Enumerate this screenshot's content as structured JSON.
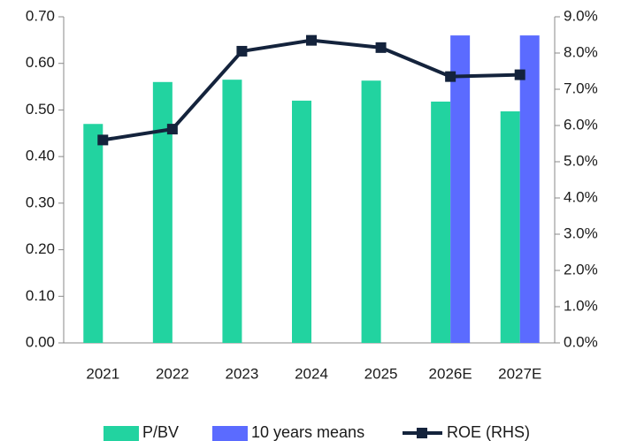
{
  "chart_data": {
    "type": "bar",
    "categories": [
      "2021",
      "2022",
      "2023",
      "2024",
      "2025",
      "2026E",
      "2027E"
    ],
    "series": [
      {
        "name": "P/BV",
        "color": "#22d3a0",
        "values": [
          0.47,
          0.56,
          0.565,
          0.52,
          0.563,
          0.518,
          0.497
        ]
      },
      {
        "name": "10 years means",
        "color": "#5b6bff",
        "values": [
          null,
          null,
          null,
          null,
          null,
          0.66,
          0.66
        ]
      },
      {
        "name": "ROE (RHS)",
        "color": "#14233c",
        "type": "line",
        "axis": "y2",
        "values": [
          5.6,
          5.9,
          8.05,
          8.35,
          8.15,
          7.35,
          7.4
        ]
      }
    ],
    "ylim": [
      0,
      0.7
    ],
    "yticks": [
      {
        "value": 0,
        "label": "0.00"
      },
      {
        "value": 0.1,
        "label": "0.10"
      },
      {
        "value": 0.2,
        "label": "0.20"
      },
      {
        "value": 0.3,
        "label": "0.30"
      },
      {
        "value": 0.4,
        "label": "0.40"
      },
      {
        "value": 0.5,
        "label": "0.50"
      },
      {
        "value": 0.6,
        "label": "0.60"
      },
      {
        "value": 0.7,
        "label": "0.70"
      }
    ],
    "y2lim": [
      0,
      9
    ],
    "y2ticks": [
      {
        "value": 0,
        "label": "0.0%"
      },
      {
        "value": 1,
        "label": "1.0%"
      },
      {
        "value": 2,
        "label": "2.0%"
      },
      {
        "value": 3,
        "label": "3.0%"
      },
      {
        "value": 4,
        "label": "4.0%"
      },
      {
        "value": 5,
        "label": "5.0%"
      },
      {
        "value": 6,
        "label": "6.0%"
      },
      {
        "value": 7,
        "label": "7.0%"
      },
      {
        "value": 8,
        "label": "8.0%"
      },
      {
        "value": 9,
        "label": "9.0%"
      }
    ],
    "grid": false,
    "legend": "bottom"
  }
}
